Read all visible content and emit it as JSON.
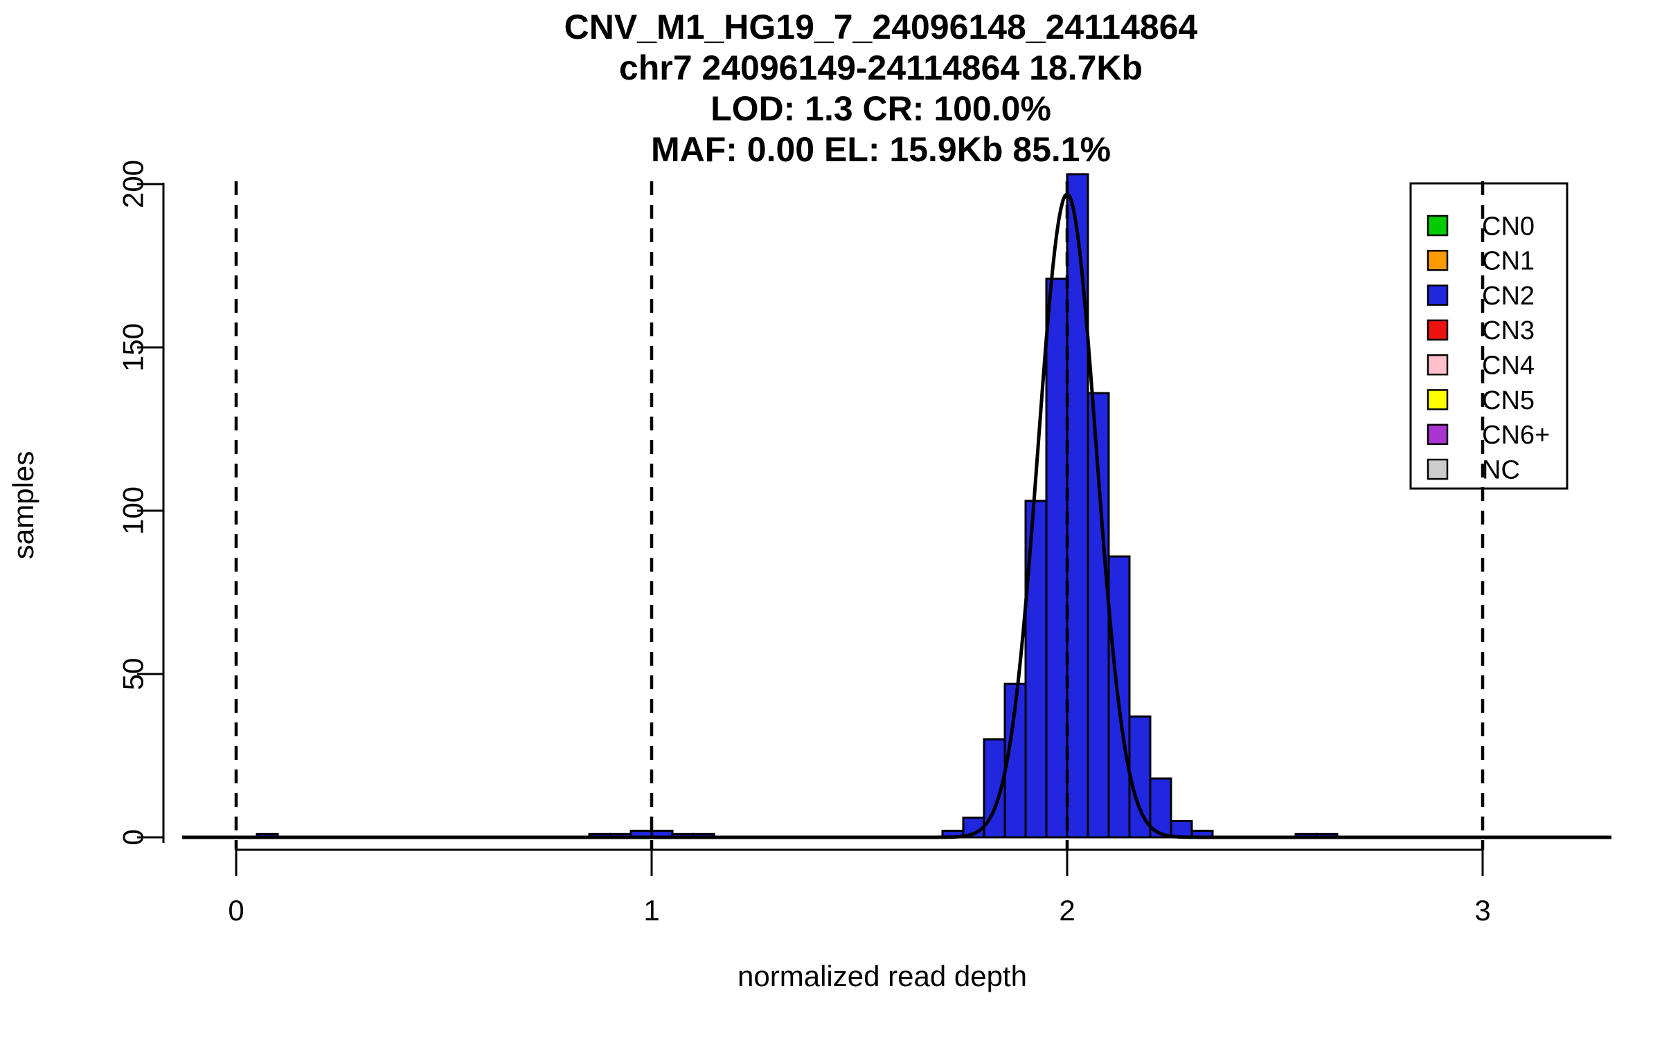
{
  "chart_data": {
    "type": "bar",
    "chart_kind": "histogram_with_density_fit",
    "title_lines": [
      "CNV_M1_HG19_7_24096148_24114864",
      "chr7 24096149-24114864 18.7Kb",
      "LOD: 1.3 CR: 100.0%",
      "MAF: 0.00 EL: 15.9Kb 85.1%"
    ],
    "xlabel": "normalized read depth",
    "ylabel": "samples",
    "xticks": [
      0,
      1,
      2,
      3
    ],
    "yticks": [
      0,
      50,
      100,
      150,
      200
    ],
    "xlim": [
      -0.13,
      3.31
    ],
    "ylim": [
      0,
      208
    ],
    "grid": false,
    "dashed_vlines_x": [
      0,
      1,
      2,
      3
    ],
    "bin_width": 0.05,
    "bar_color": "#2127DE",
    "bar_border_color": "#000000",
    "bins": [
      {
        "x": 0.05,
        "count": 1
      },
      {
        "x": 0.85,
        "count": 1
      },
      {
        "x": 0.9,
        "count": 1
      },
      {
        "x": 0.95,
        "count": 2
      },
      {
        "x": 1.0,
        "count": 2
      },
      {
        "x": 1.05,
        "count": 1
      },
      {
        "x": 1.1,
        "count": 1
      },
      {
        "x": 1.7,
        "count": 2
      },
      {
        "x": 1.75,
        "count": 6
      },
      {
        "x": 1.8,
        "count": 30
      },
      {
        "x": 1.85,
        "count": 47
      },
      {
        "x": 1.9,
        "count": 103
      },
      {
        "x": 1.95,
        "count": 171
      },
      {
        "x": 2.0,
        "count": 203
      },
      {
        "x": 2.05,
        "count": 136
      },
      {
        "x": 2.1,
        "count": 86
      },
      {
        "x": 2.15,
        "count": 37
      },
      {
        "x": 2.2,
        "count": 18
      },
      {
        "x": 2.25,
        "count": 5
      },
      {
        "x": 2.3,
        "count": 2
      },
      {
        "x": 2.55,
        "count": 1
      },
      {
        "x": 2.6,
        "count": 1
      }
    ],
    "fit_curve": {
      "shape": "gaussian",
      "mean": 2.0,
      "sd": 0.07,
      "peak": 197,
      "color": "#000000"
    },
    "legend": {
      "position": "top-right",
      "entries": [
        {
          "label": "CN0",
          "color": "#00CC00"
        },
        {
          "label": "CN1",
          "color": "#FF9900"
        },
        {
          "label": "CN2",
          "color": "#2127DE"
        },
        {
          "label": "CN3",
          "color": "#EE1111"
        },
        {
          "label": "CN4",
          "color": "#FFC0CB"
        },
        {
          "label": "CN5",
          "color": "#FFFF00"
        },
        {
          "label": "CN6+",
          "color": "#A835D0"
        },
        {
          "label": "NC",
          "color": "#CCCCCC"
        }
      ]
    }
  }
}
